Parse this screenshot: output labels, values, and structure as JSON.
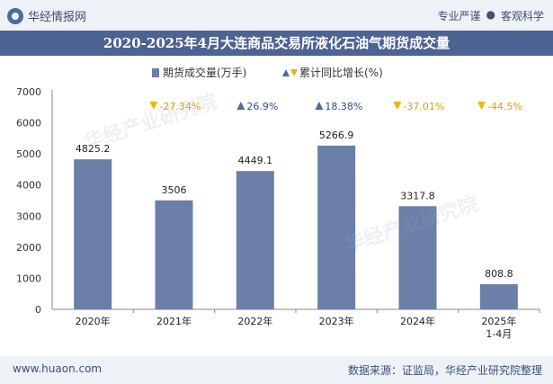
{
  "header": {
    "brand": "华经情报网",
    "tag1": "专业严谨",
    "tag_sep": "●",
    "tag2": "客观科学"
  },
  "footer": {
    "left": "www.huaon.com",
    "right": "数据来源：证监局，华经产业研究院整理"
  },
  "colors": {
    "bar": "#6b7fa8",
    "up": "#4a6b9c",
    "down": "#f0b400",
    "title_bg": "#4d6394"
  },
  "chart_data": {
    "type": "bar",
    "title": "2020-2025年4月大连商品交易所液化石油气期货成交量",
    "categories": [
      "2020年",
      "2021年",
      "2022年",
      "2023年",
      "2024年",
      "2025年\n1-4月"
    ],
    "series": [
      {
        "name": "期货成交量(万手)",
        "values": [
          4825.2,
          3506,
          4449.1,
          5266.9,
          3317.8,
          808.8
        ]
      }
    ],
    "growth": {
      "name": "累计同比增长(%)",
      "labels": [
        "",
        "-27.34%",
        "26.9%",
        "18.38%",
        "-37.01%",
        "-44.5%"
      ],
      "values": [
        null,
        -27.34,
        26.9,
        18.38,
        -37.01,
        -44.5
      ]
    },
    "ylim": [
      0,
      7000
    ],
    "yticks": [
      "0",
      "1000",
      "2000",
      "3000",
      "4000",
      "5000",
      "6000",
      "7000"
    ],
    "legend_position": "top-center",
    "grid": false
  }
}
